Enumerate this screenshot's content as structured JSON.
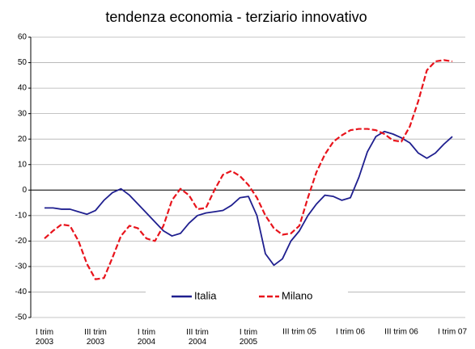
{
  "chart_data": {
    "type": "line",
    "title": "tendenza economia - terziario innovativo",
    "categories": [
      "I trim 2003",
      null,
      null,
      null,
      null,
      null,
      "III trim 2003",
      null,
      null,
      null,
      null,
      null,
      "I trim 2004",
      null,
      null,
      null,
      null,
      null,
      "III trim 2004",
      null,
      null,
      null,
      null,
      null,
      "I trim 2005",
      null,
      null,
      null,
      null,
      null,
      "III trim 05",
      null,
      null,
      null,
      null,
      null,
      "I trim 06",
      null,
      null,
      null,
      null,
      null,
      "III trim 06",
      null,
      null,
      null,
      null,
      null,
      "I trim 07"
    ],
    "series": [
      {
        "name": "Italia",
        "color": "#1f1f8f",
        "dash": false,
        "values": [
          -7,
          -7,
          -7.5,
          -7.5,
          -8.5,
          -9.5,
          -8,
          -4,
          -1,
          0.5,
          -2,
          -5.5,
          -9,
          -12.5,
          -16,
          -18,
          -17,
          -13,
          -10,
          -9,
          -8.5,
          -8,
          -6,
          -3,
          -2.5,
          -10,
          -25,
          -29.5,
          -27,
          -20,
          -16,
          -10,
          -5.5,
          -2,
          -2.5,
          -4,
          -3,
          5,
          15,
          21,
          23,
          22,
          20.5,
          18.5,
          14.5,
          12.5,
          14.5,
          18,
          21
        ]
      },
      {
        "name": "Milano",
        "color": "#e8141c",
        "dash": true,
        "values": [
          -19,
          -16,
          -13.5,
          -14,
          -20,
          -29,
          -35,
          -34.5,
          -26.5,
          -18,
          -14,
          -15,
          -19,
          -20,
          -14,
          -4,
          0.5,
          -2,
          -7.5,
          -7,
          0,
          6,
          7.5,
          5.5,
          2,
          -3,
          -10,
          -15,
          -17.5,
          -17,
          -14,
          -3,
          7,
          14,
          19,
          21.5,
          23.5,
          24,
          24,
          23.5,
          22,
          19.5,
          19,
          25,
          35,
          47,
          50.5,
          51,
          50.5
        ]
      }
    ],
    "ylim": [
      -50,
      60
    ],
    "yticks": [
      -50,
      -40,
      -30,
      -20,
      -10,
      0,
      10,
      20,
      30,
      40,
      50,
      60
    ],
    "grid": true,
    "legend": "bottom"
  }
}
